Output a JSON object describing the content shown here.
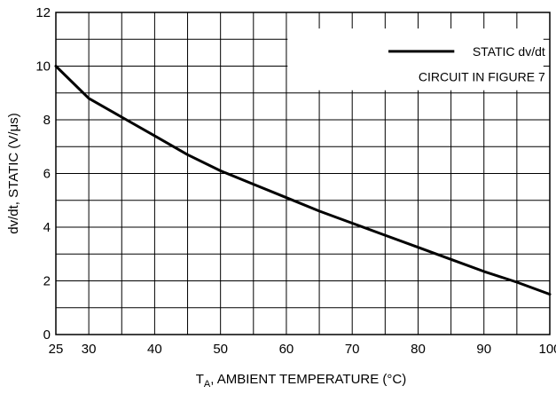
{
  "chart_data": {
    "type": "line",
    "title": "",
    "xlabel_main": "T",
    "xlabel_sub": "A",
    "xlabel_rest": ", AMBIENT TEMPERATURE (°C)",
    "ylabel": "dv/dt, STATIC (V/μs)",
    "xlim": [
      25,
      100
    ],
    "ylim": [
      0,
      12
    ],
    "x_ticks": [
      25,
      30,
      40,
      50,
      60,
      70,
      80,
      90,
      100
    ],
    "x_tick_labels": [
      "25",
      "30",
      "40",
      "50",
      "60",
      "70",
      "80",
      "90",
      "100"
    ],
    "y_ticks": [
      0,
      2,
      4,
      6,
      8,
      10,
      12
    ],
    "y_tick_labels": [
      "0",
      "2",
      "4",
      "6",
      "8",
      "10",
      "12"
    ],
    "x_grid": [
      25,
      30,
      35,
      40,
      45,
      50,
      55,
      60,
      65,
      70,
      75,
      80,
      85,
      90,
      95,
      100
    ],
    "y_grid": [
      0,
      1,
      2,
      3,
      4,
      5,
      6,
      7,
      8,
      9,
      10,
      11,
      12
    ],
    "grid": true,
    "legend_position": "top-right",
    "legend": {
      "line1": "STATIC dv/dt",
      "line2": "CIRCUIT IN FIGURE 7"
    },
    "series": [
      {
        "name": "STATIC dv/dt",
        "color": "#000000",
        "x": [
          25,
          30,
          35,
          40,
          45,
          50,
          55,
          60,
          65,
          70,
          75,
          80,
          85,
          90,
          95,
          100
        ],
        "y": [
          10.0,
          8.8,
          8.1,
          7.4,
          6.7,
          6.1,
          5.6,
          5.1,
          4.6,
          4.15,
          3.7,
          3.25,
          2.8,
          2.35,
          1.95,
          1.5
        ]
      }
    ]
  }
}
